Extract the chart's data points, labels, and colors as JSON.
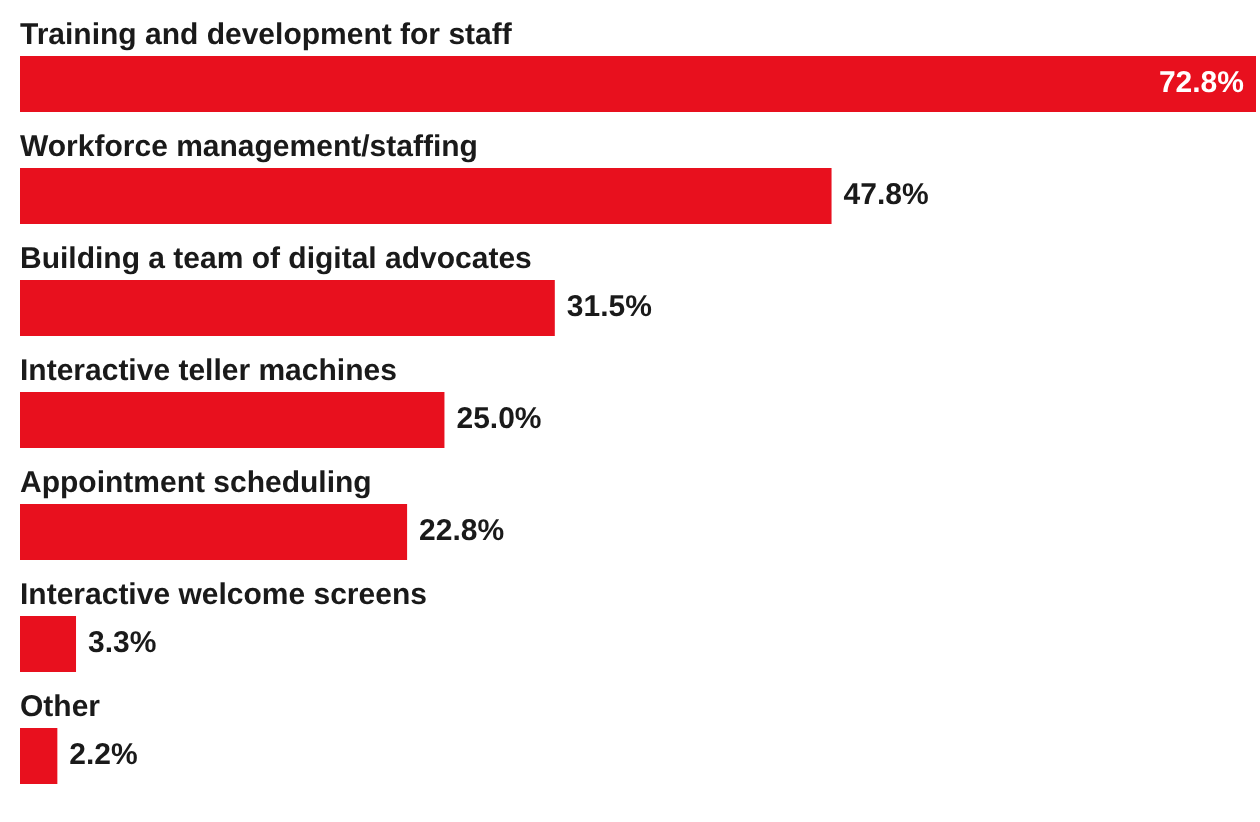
{
  "chart_data": {
    "type": "bar",
    "orientation": "horizontal",
    "categories": [
      "Training and development for staff",
      "Workforce management/staffing",
      "Building a team of digital advocates",
      "Interactive teller machines",
      "Appointment scheduling",
      "Interactive welcome screens",
      "Other"
    ],
    "values": [
      72.8,
      47.8,
      31.5,
      25.0,
      22.8,
      3.3,
      2.2
    ],
    "color": "#e8101e",
    "value_labels": [
      "72.8%",
      "47.8%",
      "31.5%",
      "25.0%",
      "22.8%",
      "3.3%",
      "2.2%"
    ]
  }
}
